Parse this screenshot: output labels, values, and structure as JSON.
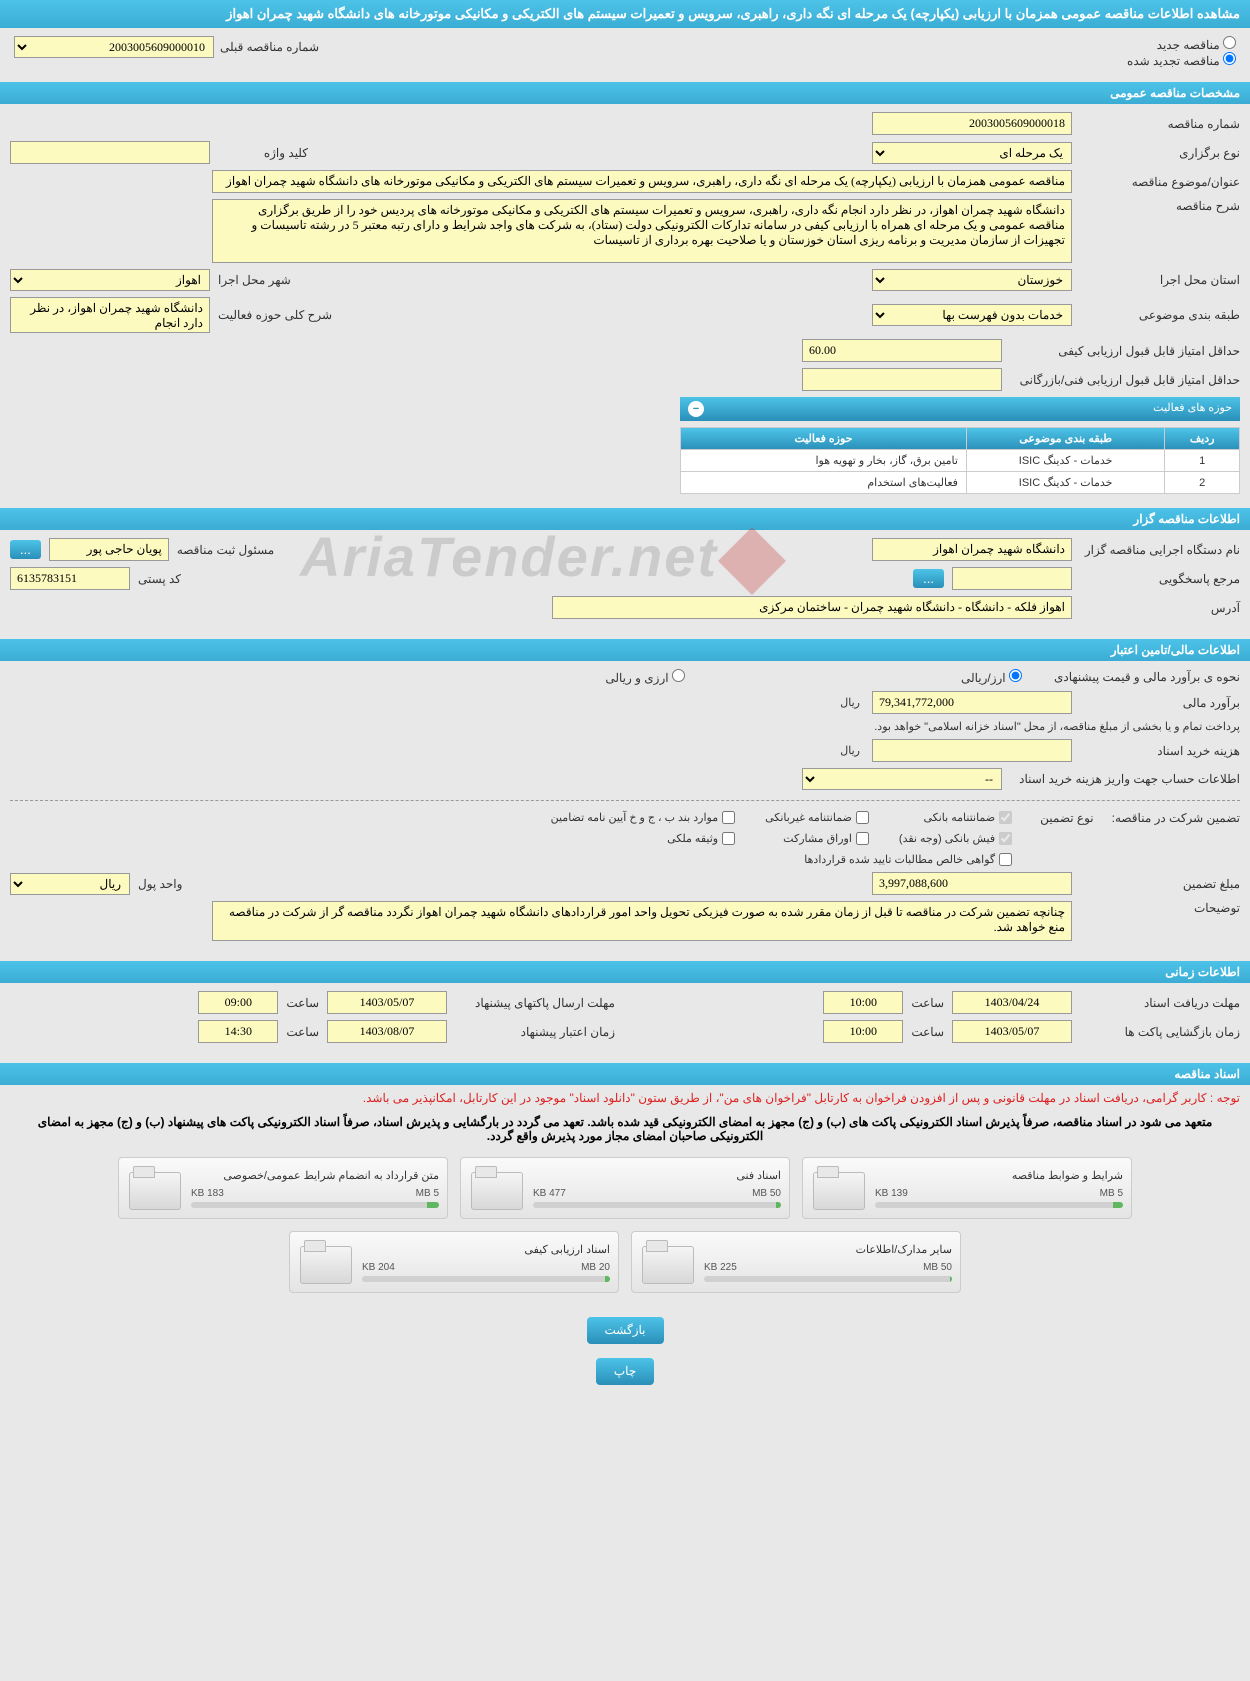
{
  "page_title": "مشاهده اطلاعات مناقصه عمومی همزمان با ارزیابی (یکپارچه) یک مرحله ای نگه داری، راهبری، سرویس و تعمیرات سیستم های الکتریکی و مکانیکی موتورخانه های دانشگاه شهید چمران اهواز",
  "radios": {
    "new_label": "مناقصه جدید",
    "renew_label": "مناقصه تجدید شده",
    "prev_label": "شماره مناقصه قبلی",
    "prev_value": "2003005609000010"
  },
  "sections": {
    "general": "مشخصات مناقصه عمومی",
    "organizer": "اطلاعات مناقصه گزار",
    "financial": "اطلاعات مالی/تامین اعتبار",
    "timing": "اطلاعات زمانی",
    "documents": "اسناد مناقصه"
  },
  "general": {
    "tender_no_label": "شماره مناقصه",
    "tender_no": "2003005609000018",
    "type_label": "نوع برگزاری",
    "type_value": "یک مرحله ای",
    "keyword_label": "کلید واژه",
    "keyword_value": "",
    "subject_label": "عنوان/موضوع مناقصه",
    "subject_value": "مناقصه عمومی همزمان با ارزیابی (یکپارچه) یک مرحله ای نگه داری، راهبری، سرویس و تعمیرات سیستم های الکتریکی و مکانیکی موتورخانه های دانشگاه شهید چمران اهواز",
    "desc_label": "شرح مناقصه",
    "desc_value": "دانشگاه شهید چمران اهواز، در نظر دارد انجام نگه داری، راهبری، سرویس و تعمیرات سیستم های الکتریکی و مکانیکی موتورخانه های پردیس خود را از طریق برگزاری مناقصه عمومی و یک مرحله ای همراه با ارزیابی کیفی در سامانه تدارکات الکترونیکی دولت (ستاد)، به شرکت های واجد شرایط و دارای رتبه معتبر 5 در رشته تاسیسات و تجهیزات از سازمان مدیریت و برنامه ریزی استان خوزستان و یا صلاحیت بهره برداری از تاسیسات",
    "province_label": "استان محل اجرا",
    "province_value": "خوزستان",
    "city_label": "شهر محل اجرا",
    "city_value": "اهواز",
    "category_label": "طبقه بندی موضوعی",
    "category_value": "خدمات بدون فهرست بها",
    "scope_label": "شرح کلی حوزه فعالیت",
    "scope_value": "دانشگاه شهید چمران اهواز، در نظر دارد انجام",
    "min_quality_label": "حداقل امتیاز قابل قبول ارزیابی کیفی",
    "min_quality_value": "60.00",
    "min_tech_label": "حداقل امتیاز قابل قبول ارزیابی فنی/بازرگانی",
    "min_tech_value": ""
  },
  "activity": {
    "caption": "حوزه های فعالیت",
    "col_row": "ردیف",
    "col_category": "طبقه بندی موضوعی",
    "col_field": "حوزه فعالیت",
    "rows": [
      {
        "n": "1",
        "cat": "خدمات - کدینگ ISIC",
        "field": "تامین برق، گاز، بخار و تهویه هوا"
      },
      {
        "n": "2",
        "cat": "خدمات - کدینگ ISIC",
        "field": "فعالیت‌های استخدام"
      }
    ]
  },
  "organizer": {
    "agency_label": "نام دستگاه اجرایی مناقصه گزار",
    "agency_value": "دانشگاه شهید چمران اهواز",
    "registrar_label": "مسئول ثبت مناقصه",
    "registrar_value": "پویان حاجی پور",
    "responder_label": "مرجع پاسخگویی",
    "responder_value": "",
    "postal_label": "کد پستی",
    "postal_value": "6135783151",
    "address_label": "آدرس",
    "address_value": "اهواز فلکه - دانشگاه - دانشگاه شهید چمران - ساختمان مرکزی"
  },
  "financial": {
    "method_label": "نحوه ی برآورد مالی و قیمت پیشنهادی",
    "opt_rial": "ارز/ریالی",
    "opt_currency": "ارزی و ریالی",
    "estimate_label": "برآورد مالی",
    "estimate_value": "79,341,772,000",
    "unit_rial": "ریال",
    "payment_note": "پرداخت تمام و یا بخشی از مبلغ مناقصه، از محل \"اسناد خزانه اسلامی\" خواهد بود.",
    "doc_cost_label": "هزینه خرید اسناد",
    "doc_cost_value": "",
    "account_label": "اطلاعات حساب جهت واریز هزینه خرید اسناد",
    "account_value": "--",
    "guarantee_title": "تضمین شرکت در مناقصه:",
    "guarantee_type_label": "نوع تضمین",
    "chk_bank": "ضمانتنامه بانکی",
    "chk_nonbank": "ضمانتنامه غیربانکی",
    "chk_items": "موارد بند ب ، ج و خ آیین نامه تضامین",
    "chk_cash": "فیش بانکی (وجه نقد)",
    "chk_bonds": "اوراق مشارکت",
    "chk_deed": "وثیقه ملکی",
    "chk_verified": "گواهی خالص مطالبات تایید شده قراردادها",
    "amount_label": "مبلغ تضمین",
    "amount_value": "3,997,088,600",
    "currency_unit_label": "واحد پول",
    "currency_unit_value": "ریال",
    "notes_label": "توضیحات",
    "notes_value": "چنانچه تضمین شرکت در مناقصه تا قبل از زمان مقرر شده به صورت فیزیکی تحویل واحد امور قراردادهای دانشگاه شهید چمران اهواز نگردد مناقصه گر از شرکت در مناقصه منع خواهد شد."
  },
  "timing": {
    "receipt_label": "مهلت دریافت اسناد",
    "receipt_date": "1403/04/24",
    "receipt_time_label": "ساعت",
    "receipt_time": "10:00",
    "send_label": "مهلت ارسال پاکتهای پیشنهاد",
    "send_date": "1403/05/07",
    "send_time_label": "ساعت",
    "send_time": "09:00",
    "open_label": "زمان بازگشایی پاکت ها",
    "open_date": "1403/05/07",
    "open_time_label": "ساعت",
    "open_time": "10:00",
    "validity_label": "زمان اعتبار پیشنهاد",
    "validity_date": "1403/08/07",
    "validity_time_label": "ساعت",
    "validity_time": "14:30"
  },
  "docs": {
    "red_note": "توجه : کاربر گرامی، دریافت اسناد در مهلت قانونی و پس از افزودن فراخوان به کارتابل \"فراخوان های من\"، از طریق ستون \"دانلود اسناد\" موجود در این کارتابل، امکانپذیر می باشد.",
    "black_note": "متعهد می شود در اسناد مناقصه، صرفاً پذیرش اسناد الکترونیکی پاکت های (ب) و (ج) مجهز به امضای الکترونیکی قید شده باشد. تعهد می گردد در بارگشایی و پذیرش اسناد، صرفاً اسناد الکترونیکی پاکت های پیشنهاد (ب) و (ج) مجهز به امضای الکترونیکی صاحبان امضای مجاز مورد پذیرش واقع گردد.",
    "files": [
      {
        "title": "شرایط و ضوابط مناقصه",
        "size": "139 KB",
        "max": "5 MB",
        "pct": "4%"
      },
      {
        "title": "اسناد فنی",
        "size": "477 KB",
        "max": "50 MB",
        "pct": "2%"
      },
      {
        "title": "متن قرارداد به انضمام شرایط عمومی/خصوصی",
        "size": "183 KB",
        "max": "5 MB",
        "pct": "5%"
      },
      {
        "title": "سایر مدارک/اطلاعات",
        "size": "225 KB",
        "max": "50 MB",
        "pct": "1%"
      },
      {
        "title": "اسناد ارزیابی کیفی",
        "size": "204 KB",
        "max": "20 MB",
        "pct": "2%"
      }
    ]
  },
  "buttons": {
    "back": "بازگشت",
    "print": "چاپ",
    "ellipsis": "..."
  },
  "watermark": "AriaTender.net"
}
